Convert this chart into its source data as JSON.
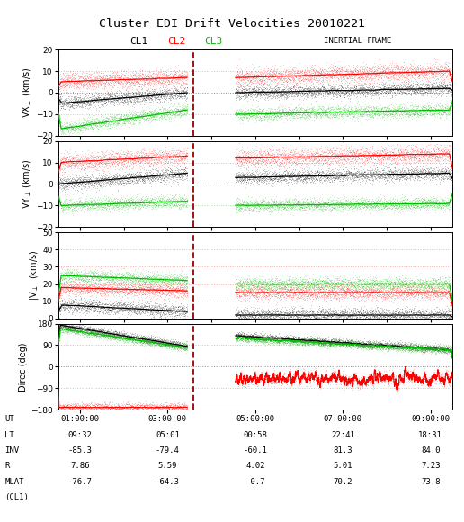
{
  "title": "Cluster EDI Drift Velocities 20010221",
  "legend_labels": [
    "CL1",
    "CL2",
    "CL3"
  ],
  "legend_colors": [
    "black",
    "red",
    "green"
  ],
  "inertial_frame_label": "INERTIAL FRAME",
  "panels": [
    {
      "ylabel": "VX$_\\perp$ (km/s)",
      "ylim": [
        -20,
        20
      ],
      "yticks": [
        -20,
        -10,
        0,
        10,
        20
      ],
      "hlines": [
        10,
        0,
        -10
      ]
    },
    {
      "ylabel": "VY$_\\perp$ (km/s)",
      "ylim": [
        -20,
        20
      ],
      "yticks": [
        -20,
        -10,
        0,
        10,
        20
      ],
      "hlines": [
        10,
        0,
        -10
      ]
    },
    {
      "ylabel": "|V$_\\perp$| (km/s)",
      "ylim": [
        0,
        50
      ],
      "yticks": [
        0,
        10,
        20,
        30,
        40,
        50
      ],
      "hlines": [
        10,
        20,
        30,
        40
      ]
    },
    {
      "ylabel": "Direc (deg)",
      "ylim": [
        -180,
        180
      ],
      "yticks": [
        -180,
        -90,
        0,
        90,
        180
      ],
      "hlines": [
        90,
        0,
        -90
      ]
    }
  ],
  "xlim_hours": [
    0.5,
    9.5
  ],
  "dashed_line_hour": 3.58,
  "xtick_hours": [
    1,
    3,
    5,
    7,
    9
  ],
  "xtick_labels": [
    "01:00:00",
    "03:00:00",
    "05:00:00",
    "07:00:00",
    "09:00:00"
  ],
  "gap_start": 3.45,
  "gap_end": 4.55,
  "footer_rows": [
    [
      "UT",
      "01:00:00",
      "03:00:00",
      "05:00:00",
      "07:00:00",
      "09:00:00"
    ],
    [
      "LT",
      "09:32",
      "05:01",
      "00:58",
      "22:41",
      "18:31"
    ],
    [
      "INV",
      "-85.3",
      "-79.4",
      "-60.1",
      "81.3",
      "84.0"
    ],
    [
      "R",
      "7.86",
      "5.59",
      "4.02",
      "5.01",
      "7.23"
    ],
    [
      "MLAT",
      "-76.7",
      "-64.3",
      "-0.7",
      "70.2",
      "73.8"
    ],
    [
      "(CL1)",
      "",
      "",
      "",
      "",
      ""
    ]
  ],
  "colors": {
    "black": "#000000",
    "red": "#ff0000",
    "green": "#00bb00",
    "dashed": "#990000",
    "background": "#ffffff"
  },
  "hline_colors": {
    "red_dotted": "#ff9999",
    "black_dotted": "#999999",
    "green_dotted": "#99dd99"
  },
  "seed": 12345
}
